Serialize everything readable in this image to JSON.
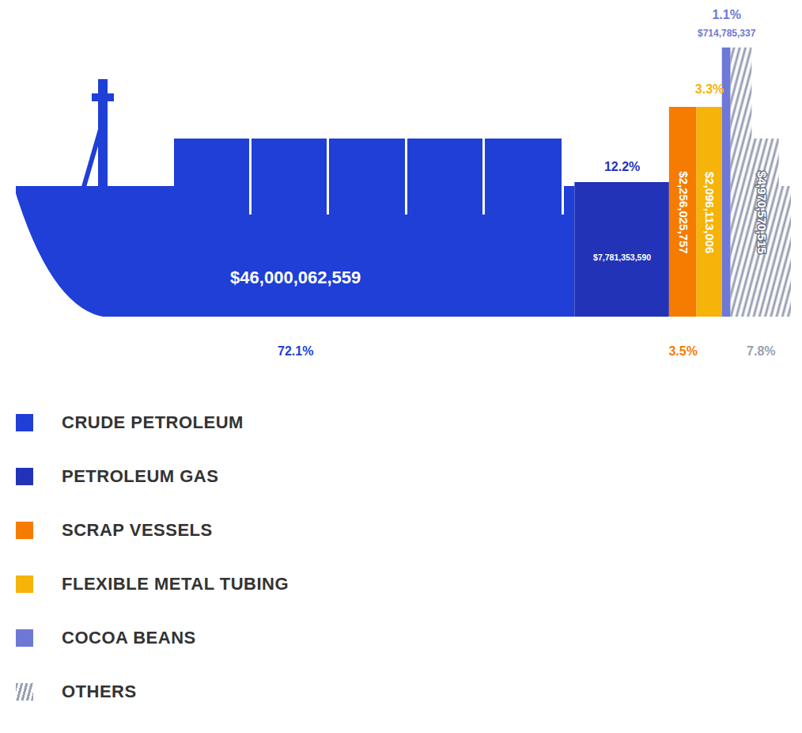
{
  "chart_data": {
    "type": "bar",
    "orientation": "horizontal",
    "stacked": true,
    "data_labels": true,
    "tick_labels": false,
    "legend": "bottom",
    "categories": [
      "CRUDE PETROLEUM",
      "PETROLEUM GAS",
      "SCRAP VESSELS",
      "FLEXIBLE METAL TUBING",
      "COCOA BEANS",
      "OTHERS"
    ],
    "values": [
      46000062559,
      7781353590,
      2256025757,
      2096113006,
      714785337,
      4970570515
    ],
    "value_labels": [
      "$46,000,062,559",
      "$7,781,353,590",
      "$2,256,025,757",
      "$2,096,113,006",
      "$714,785,337",
      "$4,970,570,515"
    ],
    "share_labels": [
      "72.1%",
      "12.2%",
      "3.5%",
      "3.3%",
      "1.1%",
      "7.8%"
    ],
    "colors": [
      "#1f3fd6",
      "#2233b8",
      "#f57c00",
      "#f6b30a",
      "#6e78d6",
      "#9aa0b4"
    ],
    "xlim": [
      0,
      63818910764
    ]
  }
}
